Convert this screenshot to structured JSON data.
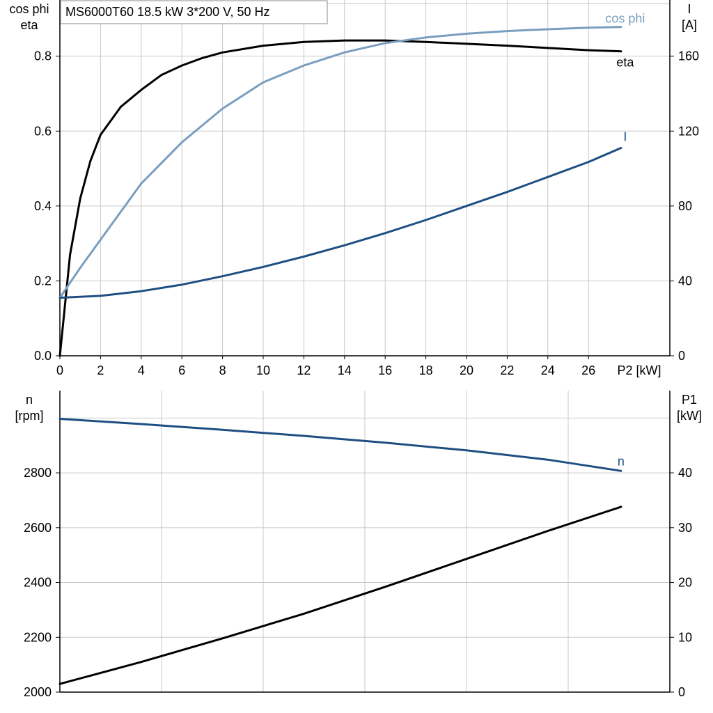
{
  "chart_data": [
    {
      "type": "line",
      "title_box": "MS6000T60   18.5 kW   3*200 V, 50 Hz",
      "x_unit_label": "P2 [kW]",
      "xlim": [
        0,
        30
      ],
      "x_ticks": [
        0,
        2,
        4,
        6,
        8,
        10,
        12,
        14,
        16,
        18,
        20,
        22,
        24,
        26
      ],
      "left_axis": {
        "label_line1": "cos phi",
        "label_line2": "eta",
        "ylim": [
          0,
          0.95
        ],
        "ticks": [
          "0.0",
          "0.2",
          "0.4",
          "0.6",
          "0.8"
        ],
        "tick_values": [
          0,
          0.2,
          0.4,
          0.6,
          0.8
        ]
      },
      "right_axis": {
        "label_line1": "I",
        "label_line2": "[A]",
        "ylim": [
          0,
          190
        ],
        "ticks": [
          "0",
          "40",
          "80",
          "120",
          "160"
        ],
        "tick_values": [
          0,
          40,
          80,
          120,
          160
        ]
      },
      "grid": true,
      "series": [
        {
          "name": "eta",
          "axis": "left",
          "color": "#000000",
          "x": [
            0,
            0.5,
            1,
            1.5,
            2,
            3,
            4,
            5,
            6,
            7,
            8,
            10,
            12,
            14,
            16,
            18,
            20,
            22,
            24,
            26,
            27.6
          ],
          "y": [
            0.0,
            0.27,
            0.42,
            0.52,
            0.59,
            0.665,
            0.71,
            0.75,
            0.775,
            0.795,
            0.81,
            0.828,
            0.838,
            0.842,
            0.842,
            0.838,
            0.833,
            0.828,
            0.822,
            0.816,
            0.813
          ]
        },
        {
          "name": "cos phi",
          "axis": "left",
          "color": "#7a9ebf",
          "x": [
            0,
            1,
            2,
            4,
            6,
            8,
            10,
            12,
            14,
            16,
            18,
            20,
            22,
            24,
            26,
            27.6
          ],
          "y": [
            0.155,
            0.235,
            0.31,
            0.46,
            0.57,
            0.66,
            0.73,
            0.775,
            0.81,
            0.835,
            0.85,
            0.86,
            0.867,
            0.872,
            0.876,
            0.878
          ]
        },
        {
          "name": "I",
          "axis": "right",
          "color": "#1f4f82",
          "x": [
            0,
            2,
            4,
            6,
            8,
            10,
            12,
            14,
            16,
            18,
            20,
            22,
            24,
            26,
            27.6
          ],
          "y": [
            31,
            32,
            34.5,
            38,
            42.5,
            47.5,
            53,
            59,
            65.5,
            72.5,
            80,
            87.5,
            95.5,
            103.5,
            111
          ]
        }
      ]
    },
    {
      "type": "line",
      "left_axis": {
        "label_line1": "n",
        "label_line2": "[rpm]",
        "ylim": [
          2000,
          3100
        ],
        "ticks": [
          "2000",
          "2200",
          "2400",
          "2600",
          "2800"
        ],
        "tick_values": [
          2000,
          2200,
          2400,
          2600,
          2800
        ]
      },
      "right_axis": {
        "label_line1": "P1",
        "label_line2": "[kW]",
        "ylim": [
          0,
          55
        ],
        "ticks": [
          "0",
          "10",
          "20",
          "30",
          "40"
        ],
        "tick_values": [
          0,
          10,
          20,
          30,
          40
        ]
      },
      "xlim": [
        0,
        30
      ],
      "grid": true,
      "series": [
        {
          "name": "n",
          "axis": "left",
          "color": "#1f4f82",
          "x": [
            0,
            4,
            8,
            12,
            16,
            20,
            24,
            27.6
          ],
          "y": [
            2997,
            2978,
            2957,
            2935,
            2910,
            2882,
            2848,
            2807
          ]
        },
        {
          "name": "",
          "axis": "right",
          "color": "#000000",
          "x": [
            0,
            4,
            8,
            12,
            16,
            20,
            24,
            27.6
          ],
          "y": [
            1.5,
            5.5,
            9.8,
            14.3,
            19.2,
            24.3,
            29.4,
            33.8
          ]
        }
      ]
    }
  ]
}
